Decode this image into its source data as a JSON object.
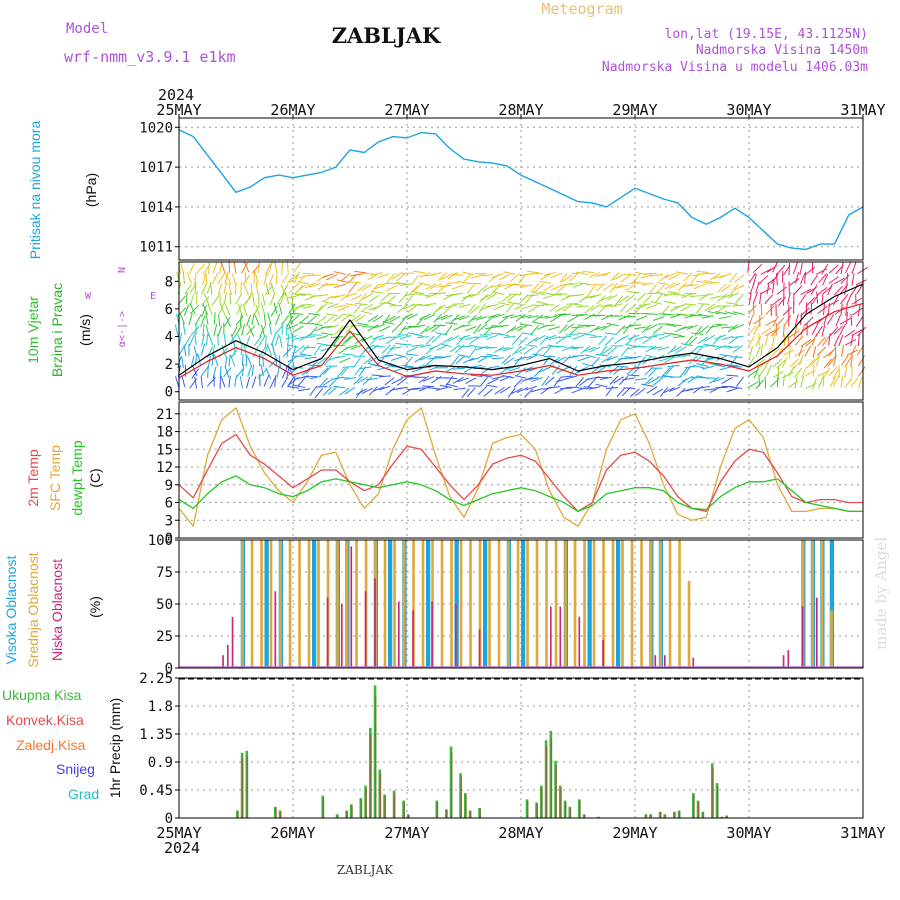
{
  "header": {
    "model_label": "Model",
    "model_name": "wrf-nmm_v3.9.1 e1km",
    "station": "ZABLJAK",
    "product": "Meteogram",
    "coords": "lon,lat (19.15E, 43.1125N)",
    "elevation": "Nadmorska Visina 1450m",
    "model_elevation": "Nadmorska Visina u modelu 1406.03m",
    "footer_station": "ZABLJAK",
    "credit": "made by Angel",
    "year": "2024"
  },
  "colors": {
    "pressure": "#1ba5e0",
    "wind_axis_label": "#30c030",
    "speed_axis_label": "#2ab52a",
    "compass": "#b050d8",
    "temp_2m": "#e84848",
    "temp_sfc": "#e0a838",
    "temp_dew": "#22c822",
    "cloud_high": "#1ba5e0",
    "cloud_mid": "#e0a838",
    "cloud_low": "#c8287a",
    "precip_total": "#3cb83c",
    "precip_conv": "#e84848",
    "precip_frozen": "#f07a30",
    "precip_snow": "#4040e0",
    "precip_hail": "#20c0c0",
    "grid": "#999999"
  },
  "chart_data": [
    {
      "type": "line",
      "panel": "pressure",
      "ylabel": [
        "Pritisak na nivou mora",
        "(hPa)"
      ],
      "ylim": [
        1010,
        1020.7
      ],
      "yticks": [
        1011,
        1014,
        1017,
        1020
      ],
      "x_top_labels": [
        "25MAY",
        "26MAY",
        "27MAY",
        "28MAY",
        "29MAY",
        "30MAY",
        "31MAY"
      ],
      "x": [
        0,
        3,
        6,
        9,
        12,
        15,
        18,
        21,
        24,
        27,
        30,
        33,
        36,
        39,
        42,
        45,
        48,
        51,
        54,
        57,
        60,
        63,
        66,
        69,
        72,
        75,
        78,
        81,
        84,
        87,
        90,
        93,
        96,
        99,
        102,
        105,
        108,
        111,
        114,
        117,
        120,
        123,
        126,
        129,
        132,
        135,
        138,
        141,
        144
      ],
      "values": [
        1019.8,
        1019.3,
        1017.9,
        1016.5,
        1015.1,
        1015.5,
        1016.2,
        1016.4,
        1016.2,
        1016.4,
        1016.6,
        1017.0,
        1018.3,
        1018.1,
        1018.9,
        1019.3,
        1019.2,
        1019.6,
        1019.5,
        1018.4,
        1017.6,
        1017.4,
        1017.3,
        1017.1,
        1016.4,
        1015.9,
        1015.4,
        1014.9,
        1014.4,
        1014.3,
        1014.0,
        1014.7,
        1015.4,
        1015.0,
        1014.6,
        1014.3,
        1013.2,
        1012.7,
        1013.2,
        1013.9,
        1013.2,
        1012.2,
        1011.2,
        1010.9,
        1010.8,
        1011.2,
        1011.2,
        1013.4,
        1014.0
      ]
    },
    {
      "type": "wind_barbs",
      "panel": "wind",
      "ylabel": [
        "10m Vjetar",
        "Brzina i Pravac",
        "(m/s)"
      ],
      "compass": {
        "n": "N",
        "s": "S",
        "w": "W",
        "e": "E",
        "sub": "⍺<-|->"
      },
      "ylim": [
        -0.6,
        9.4
      ],
      "yticks": [
        0,
        2,
        4,
        6,
        8
      ],
      "speed_black": {
        "x": [
          0,
          6,
          12,
          18,
          24,
          30,
          36,
          42,
          48,
          54,
          60,
          66,
          72,
          78,
          84,
          90,
          96,
          102,
          108,
          114,
          120,
          126,
          132,
          138,
          144
        ],
        "values": [
          1.2,
          2.6,
          3.7,
          2.8,
          1.6,
          2.4,
          5.2,
          2.3,
          1.6,
          1.9,
          1.8,
          1.6,
          1.9,
          2.4,
          1.5,
          1.9,
          2.1,
          2.5,
          2.8,
          2.4,
          1.8,
          3.2,
          5.6,
          6.9,
          7.8
        ]
      },
      "speed_red": {
        "x": [
          0,
          6,
          12,
          18,
          24,
          30,
          36,
          42,
          48,
          54,
          60,
          66,
          72,
          78,
          84,
          90,
          96,
          102,
          108,
          114,
          120,
          126,
          132,
          138,
          144
        ],
        "values": [
          1.0,
          2.2,
          3.2,
          2.4,
          1.2,
          1.9,
          4.4,
          1.9,
          1.1,
          1.5,
          1.3,
          1.2,
          1.5,
          1.9,
          1.2,
          1.5,
          1.7,
          2.0,
          2.3,
          2.0,
          1.5,
          2.6,
          4.6,
          5.8,
          6.4
        ]
      }
    },
    {
      "type": "line",
      "panel": "temperature",
      "ylabel": [
        "2m Temp",
        "SFC Temp",
        "dewpt Temp",
        "(C)"
      ],
      "ylim": [
        0,
        23
      ],
      "yticks": [
        0,
        3,
        6,
        9,
        12,
        15,
        18,
        21
      ],
      "series": [
        {
          "name": "2m Temp",
          "x": [
            0,
            3,
            6,
            9,
            12,
            15,
            18,
            21,
            24,
            27,
            30,
            33,
            36,
            39,
            42,
            45,
            48,
            51,
            54,
            57,
            60,
            63,
            66,
            69,
            72,
            75,
            78,
            81,
            84,
            87,
            90,
            93,
            96,
            99,
            102,
            105,
            108,
            111,
            114,
            117,
            120,
            123,
            126,
            129,
            132,
            135,
            138,
            141,
            144
          ],
          "values": [
            9.0,
            6.8,
            11.5,
            16.0,
            17.5,
            14.0,
            12.5,
            10.5,
            8.5,
            10.0,
            11.5,
            11.5,
            9.5,
            8.0,
            9.0,
            12.5,
            15.5,
            15.0,
            12.0,
            9.0,
            6.5,
            9.0,
            12.5,
            13.5,
            14.0,
            13.0,
            10.0,
            7.0,
            4.5,
            6.0,
            11.5,
            14.0,
            14.5,
            13.0,
            10.5,
            7.0,
            5.0,
            4.5,
            9.5,
            13.0,
            15.0,
            14.5,
            11.0,
            7.0,
            6.0,
            6.5,
            6.5,
            6.0,
            6.0
          ]
        },
        {
          "name": "SFC Temp",
          "x": [
            0,
            3,
            6,
            9,
            12,
            15,
            18,
            21,
            24,
            27,
            30,
            33,
            36,
            39,
            42,
            45,
            48,
            51,
            54,
            57,
            60,
            63,
            66,
            69,
            72,
            75,
            78,
            81,
            84,
            87,
            90,
            93,
            96,
            99,
            102,
            105,
            108,
            111,
            114,
            117,
            120,
            123,
            126,
            129,
            132,
            135,
            138,
            141,
            144
          ],
          "values": [
            5.0,
            2.0,
            14.0,
            20.0,
            22.0,
            15.5,
            11.0,
            8.0,
            6.0,
            9.5,
            14.0,
            14.5,
            9.0,
            5.0,
            7.5,
            15.0,
            20.0,
            22.0,
            14.0,
            7.0,
            3.5,
            8.5,
            16.0,
            17.0,
            17.5,
            15.0,
            8.0,
            3.5,
            2.0,
            6.0,
            15.0,
            20.0,
            21.0,
            16.0,
            9.0,
            4.0,
            3.0,
            3.5,
            12.0,
            18.5,
            20.0,
            17.0,
            9.0,
            4.5,
            4.5,
            5.0,
            5.0,
            4.5,
            4.5
          ]
        },
        {
          "name": "dewpt Temp",
          "x": [
            0,
            3,
            6,
            9,
            12,
            15,
            18,
            21,
            24,
            27,
            30,
            33,
            36,
            39,
            42,
            45,
            48,
            51,
            54,
            57,
            60,
            63,
            66,
            69,
            72,
            75,
            78,
            81,
            84,
            87,
            90,
            93,
            96,
            99,
            102,
            105,
            108,
            111,
            114,
            117,
            120,
            123,
            126,
            129,
            132,
            135,
            138,
            141,
            144
          ],
          "values": [
            6.5,
            5.0,
            7.5,
            9.5,
            10.5,
            9.0,
            8.5,
            7.5,
            7.0,
            8.0,
            9.5,
            10.0,
            9.5,
            9.0,
            8.5,
            9.0,
            9.5,
            9.0,
            8.0,
            6.5,
            5.5,
            6.5,
            7.5,
            8.0,
            8.5,
            8.0,
            7.0,
            6.0,
            4.5,
            5.5,
            7.5,
            8.0,
            8.5,
            8.5,
            8.0,
            6.0,
            5.0,
            4.8,
            7.0,
            8.5,
            9.5,
            9.5,
            10.0,
            8.0,
            6.0,
            5.5,
            5.0,
            4.5,
            4.5
          ]
        }
      ]
    },
    {
      "type": "bar",
      "panel": "clouds",
      "ylabel": [
        "Visoka Oblacnost",
        "Srednja Oblacnost",
        "Niska Oblacnost",
        "(%)"
      ],
      "ylim": [
        0,
        100
      ],
      "yticks": [
        0,
        25,
        50,
        75,
        100
      ],
      "series": [
        {
          "name": "Visoka Oblacnost",
          "hours_start": [
            13,
            18,
            21,
            28,
            33,
            35,
            41,
            44,
            47,
            52,
            58,
            64,
            69,
            72,
            81,
            86,
            92,
            99,
            101,
            131,
            133,
            135,
            137
          ],
          "values": [
            100,
            100,
            100,
            100,
            100,
            100,
            100,
            100,
            100,
            100,
            100,
            100,
            100,
            100,
            100,
            100,
            100,
            100,
            100,
            100,
            100,
            100,
            100
          ]
        },
        {
          "name": "Srednja Oblacnost",
          "hours_start": [
            13,
            15,
            17,
            19,
            21,
            23,
            25,
            27,
            29,
            31,
            33,
            35,
            37,
            39,
            41,
            43,
            45,
            47,
            49,
            51,
            53,
            55,
            57,
            59,
            61,
            63,
            65,
            67,
            69,
            71,
            73,
            75,
            77,
            79,
            81,
            83,
            85,
            87,
            89,
            91,
            93,
            95,
            97,
            99,
            101,
            103,
            105,
            107,
            131,
            133,
            135,
            137
          ],
          "values": [
            100,
            100,
            100,
            100,
            100,
            100,
            100,
            100,
            100,
            100,
            100,
            100,
            100,
            100,
            100,
            100,
            100,
            100,
            100,
            100,
            100,
            100,
            100,
            100,
            100,
            100,
            100,
            100,
            100,
            100,
            100,
            100,
            100,
            100,
            100,
            100,
            100,
            100,
            100,
            100,
            100,
            100,
            100,
            100,
            100,
            100,
            100,
            68,
            100,
            100,
            100,
            45
          ]
        },
        {
          "name": "Niska Oblacnost",
          "hours_start": [
            9,
            10,
            11,
            20,
            31,
            34,
            36,
            39,
            41,
            46,
            49,
            53,
            58,
            63,
            78,
            80,
            84,
            89,
            100,
            102,
            108,
            127,
            128,
            131,
            134
          ],
          "values": [
            10,
            18,
            40,
            60,
            55,
            50,
            95,
            60,
            70,
            52,
            45,
            52,
            50,
            30,
            48,
            48,
            40,
            22,
            10,
            10,
            8,
            10,
            14,
            48,
            55
          ]
        }
      ]
    },
    {
      "type": "bar",
      "panel": "precipitation",
      "ylabel": [
        "1hr Precip (mm)"
      ],
      "legend": [
        "Ukupna Kisa",
        "Konvek.Kisa",
        "Zaledj.Kisa",
        "Snijeg",
        "Grad"
      ],
      "ylim": [
        0,
        2.25
      ],
      "yticks": [
        0,
        0.45,
        0.9,
        1.35,
        1.8,
        2.25
      ],
      "x_bottom_labels": [
        "25MAY",
        "26MAY",
        "27MAY",
        "28MAY",
        "29MAY",
        "30MAY",
        "31MAY"
      ],
      "hours": [
        12,
        13,
        14,
        20,
        21,
        30,
        33,
        35,
        36,
        38,
        39,
        40,
        41,
        42,
        43,
        45,
        47,
        48,
        54,
        56,
        57,
        59,
        60,
        61,
        63,
        73,
        75,
        76,
        77,
        78,
        79,
        80,
        81,
        82,
        84,
        85,
        88,
        98,
        99,
        101,
        102,
        104,
        105,
        108,
        109,
        110,
        112,
        113,
        114,
        115
      ],
      "values": [
        0.12,
        1.05,
        1.08,
        0.18,
        0.12,
        0.36,
        0.06,
        0.12,
        0.22,
        0.32,
        0.52,
        1.45,
        2.13,
        0.78,
        0.38,
        0.44,
        0.28,
        0.06,
        0.28,
        0.14,
        1.15,
        0.72,
        0.4,
        0.12,
        0.16,
        0.3,
        0.25,
        0.52,
        1.25,
        1.4,
        0.92,
        0.52,
        0.28,
        0.18,
        0.3,
        0.06,
        0.02,
        0.06,
        0.06,
        0.1,
        0.06,
        0.1,
        0.12,
        0.4,
        0.28,
        0.1,
        0.88,
        0.56,
        0.02,
        0.04
      ]
    }
  ]
}
